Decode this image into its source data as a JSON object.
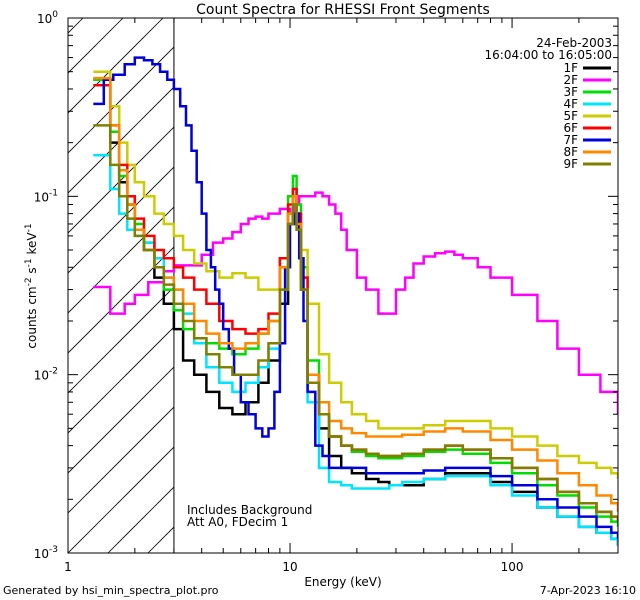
{
  "chart_data": {
    "type": "line",
    "title": "Count Spectra for RHESSI Front Segments",
    "xlabel": "Energy (keV)",
    "ylabel_parts": [
      "counts cm",
      "-2",
      " s",
      "-1",
      " keV",
      "-1"
    ],
    "xscale": "log",
    "yscale": "log",
    "xlim": [
      1,
      300
    ],
    "ylim": [
      0.001,
      1
    ],
    "x_ticks": [
      {
        "value": 1,
        "label": "1"
      },
      {
        "value": 10,
        "label": "10"
      },
      {
        "value": 100,
        "label": "100"
      }
    ],
    "y_ticks": [
      {
        "value": 0.001,
        "base": "10",
        "exp": "-3"
      },
      {
        "value": 0.01,
        "base": "10",
        "exp": "-2"
      },
      {
        "value": 0.1,
        "base": "10",
        "exp": "-1"
      },
      {
        "value": 1,
        "base": "10",
        "exp": "0"
      }
    ],
    "date": "24-Feb-2003",
    "time_range": "16:04:00 to 16:05:00",
    "annotation_lines": [
      "Includes Background",
      "Att A0, FDecim 1"
    ],
    "attenuator_cutoff_kev": 3,
    "legend_position": "top-right",
    "series": [
      {
        "name": "1F",
        "color": "#000000",
        "x": [
          1.3,
          1.55,
          1.7,
          1.85,
          2.0,
          2.2,
          2.45,
          2.7,
          3.0,
          3.3,
          3.7,
          4.2,
          4.8,
          5.5,
          6.3,
          7.2,
          8.0,
          9.0,
          9.8,
          10.3,
          10.7,
          11.2,
          12.0,
          13.5,
          15,
          17,
          19,
          22,
          25,
          28,
          32,
          40,
          50,
          60,
          80,
          100,
          130,
          160,
          200,
          240,
          280,
          300
        ],
        "y": [
          0.45,
          0.2,
          0.12,
          0.09,
          0.065,
          0.05,
          0.035,
          0.025,
          0.018,
          0.012,
          0.01,
          0.008,
          0.0065,
          0.006,
          0.007,
          0.009,
          0.012,
          0.025,
          0.07,
          0.1,
          0.07,
          0.03,
          0.009,
          0.005,
          0.0035,
          0.003,
          0.0028,
          0.0026,
          0.0025,
          0.0024,
          0.0024,
          0.0026,
          0.0028,
          0.0028,
          0.0025,
          0.0022,
          0.0018,
          0.0016,
          0.0014,
          0.0013,
          0.0012,
          0.0011
        ]
      },
      {
        "name": "2F",
        "color": "#ff00ff",
        "x": [
          1.3,
          1.55,
          1.8,
          2.0,
          2.3,
          2.7,
          3.0,
          3.5,
          4.0,
          4.5,
          5.0,
          5.5,
          6.0,
          6.5,
          7.0,
          7.5,
          8.0,
          9.0,
          10.0,
          10.5,
          11.0,
          12.0,
          13.0,
          14.0,
          15.0,
          16.0,
          17.0,
          18.0,
          20.0,
          22.0,
          25.0,
          28.0,
          30.0,
          33.0,
          36.0,
          40.0,
          45.0,
          50.0,
          55.0,
          60.0,
          70.0,
          80.0,
          100.0,
          130.0,
          160.0,
          200.0,
          250.0,
          300.0
        ],
        "y": [
          0.031,
          0.022,
          0.025,
          0.028,
          0.033,
          0.038,
          0.041,
          0.041,
          0.047,
          0.055,
          0.058,
          0.063,
          0.07,
          0.075,
          0.077,
          0.075,
          0.08,
          0.085,
          0.08,
          0.09,
          0.1,
          0.1,
          0.105,
          0.1,
          0.09,
          0.08,
          0.065,
          0.05,
          0.035,
          0.03,
          0.022,
          0.022,
          0.03,
          0.035,
          0.042,
          0.046,
          0.048,
          0.049,
          0.047,
          0.045,
          0.04,
          0.035,
          0.028,
          0.02,
          0.014,
          0.01,
          0.008,
          0.006
        ]
      },
      {
        "name": "3F",
        "color": "#00dd00",
        "x": [
          1.3,
          1.55,
          1.7,
          1.85,
          2.0,
          2.2,
          2.45,
          2.7,
          3.0,
          3.3,
          3.7,
          4.2,
          4.8,
          5.5,
          6.3,
          7.2,
          8.0,
          9.0,
          9.8,
          10.3,
          10.7,
          11.2,
          12.0,
          13.5,
          15,
          17,
          19,
          22,
          25,
          28,
          32,
          40,
          50,
          60,
          80,
          100,
          130,
          160,
          200,
          240,
          280,
          300
        ],
        "y": [
          0.45,
          0.23,
          0.13,
          0.1,
          0.07,
          0.055,
          0.04,
          0.03,
          0.023,
          0.018,
          0.016,
          0.015,
          0.014,
          0.013,
          0.014,
          0.017,
          0.02,
          0.04,
          0.1,
          0.13,
          0.09,
          0.04,
          0.012,
          0.006,
          0.0045,
          0.004,
          0.0037,
          0.0035,
          0.0034,
          0.0034,
          0.0035,
          0.0037,
          0.0038,
          0.0036,
          0.0032,
          0.0028,
          0.0024,
          0.0021,
          0.0018,
          0.0016,
          0.0015,
          0.0014
        ]
      },
      {
        "name": "4F",
        "color": "#00e5ff",
        "x": [
          1.3,
          1.55,
          1.7,
          1.85,
          2.0,
          2.2,
          2.45,
          2.7,
          3.0,
          3.3,
          3.7,
          4.2,
          4.8,
          5.5,
          6.3,
          7.2,
          8.0,
          9.0,
          9.8,
          10.3,
          10.7,
          11.2,
          12.0,
          13.5,
          15,
          17,
          19,
          22,
          25,
          28,
          32,
          40,
          50,
          60,
          80,
          100,
          130,
          160,
          200,
          240,
          280,
          300
        ],
        "y": [
          0.17,
          0.11,
          0.08,
          0.065,
          0.06,
          0.055,
          0.045,
          0.035,
          0.03,
          0.022,
          0.015,
          0.011,
          0.009,
          0.008,
          0.009,
          0.011,
          0.014,
          0.03,
          0.08,
          0.11,
          0.075,
          0.03,
          0.007,
          0.003,
          0.0025,
          0.0024,
          0.0023,
          0.0023,
          0.0023,
          0.0024,
          0.0025,
          0.0026,
          0.0027,
          0.0027,
          0.0024,
          0.0021,
          0.0018,
          0.0016,
          0.0014,
          0.0013,
          0.0012,
          0.0011
        ]
      },
      {
        "name": "5F",
        "color": "#cccc00",
        "x": [
          1.3,
          1.55,
          1.7,
          1.85,
          2.0,
          2.2,
          2.45,
          2.7,
          3.0,
          3.3,
          3.7,
          4.2,
          4.8,
          5.5,
          6.3,
          7.2,
          8.0,
          9.0,
          9.8,
          10.3,
          10.7,
          11.2,
          12.0,
          13.5,
          15,
          17,
          19,
          22,
          25,
          28,
          32,
          40,
          50,
          60,
          80,
          100,
          130,
          160,
          200,
          240,
          280,
          300
        ],
        "y": [
          0.5,
          0.32,
          0.2,
          0.15,
          0.12,
          0.1,
          0.08,
          0.07,
          0.06,
          0.05,
          0.042,
          0.038,
          0.035,
          0.037,
          0.035,
          0.03,
          0.03,
          0.045,
          0.08,
          0.09,
          0.08,
          0.05,
          0.025,
          0.013,
          0.009,
          0.007,
          0.006,
          0.0055,
          0.005,
          0.005,
          0.005,
          0.0052,
          0.0055,
          0.0055,
          0.005,
          0.0045,
          0.004,
          0.0035,
          0.0032,
          0.003,
          0.0028,
          0.0026
        ]
      },
      {
        "name": "6F",
        "color": "#ff0000",
        "x": [
          1.3,
          1.55,
          1.7,
          1.85,
          2.0,
          2.2,
          2.45,
          2.7,
          3.0,
          3.3,
          3.7,
          4.2,
          4.8,
          5.5,
          6.3,
          7.2,
          8.0,
          9.0,
          9.8,
          10.3,
          10.7,
          11.2,
          12.0,
          13.5,
          15,
          17,
          19,
          22,
          25,
          28,
          32,
          40,
          50,
          60,
          80,
          100,
          130,
          160,
          200,
          240,
          280,
          300
        ],
        "y": [
          0.42,
          0.25,
          0.15,
          0.1,
          0.075,
          0.06,
          0.05,
          0.045,
          0.04,
          0.035,
          0.03,
          0.025,
          0.02,
          0.018,
          0.017,
          0.018,
          0.022,
          0.045,
          0.09,
          0.11,
          0.08,
          0.035,
          0.01,
          0.006,
          0.0045,
          0.004,
          0.0038,
          0.0036,
          0.0035,
          0.0035,
          0.0036,
          0.0038,
          0.004,
          0.0038,
          0.0034,
          0.003,
          0.0026,
          0.0022,
          0.0019,
          0.0017,
          0.0016,
          0.0015
        ]
      },
      {
        "name": "7F",
        "color": "#0000dd",
        "x": [
          1.3,
          1.45,
          1.6,
          1.8,
          2.0,
          2.2,
          2.4,
          2.6,
          2.8,
          3.0,
          3.2,
          3.4,
          3.6,
          3.8,
          4.0,
          4.2,
          4.4,
          4.6,
          4.8,
          5.0,
          5.3,
          5.6,
          6.0,
          6.5,
          7.0,
          7.5,
          8.0,
          8.5,
          9.0,
          9.5,
          10.0,
          10.5,
          11.0,
          11.5,
          12.0,
          13.0,
          14.0,
          15.0,
          16.0,
          18.0,
          20.0,
          22.0,
          25.0,
          28.0,
          32.0,
          40.0,
          50.0,
          60.0,
          80.0,
          100.0,
          130.0,
          160.0,
          200.0,
          240.0,
          280.0,
          300.0
        ],
        "y": [
          0.33,
          0.45,
          0.48,
          0.55,
          0.6,
          0.58,
          0.55,
          0.5,
          0.45,
          0.4,
          0.32,
          0.25,
          0.18,
          0.12,
          0.08,
          0.05,
          0.04,
          0.03,
          0.025,
          0.018,
          0.014,
          0.01,
          0.007,
          0.006,
          0.005,
          0.0045,
          0.005,
          0.008,
          0.015,
          0.04,
          0.07,
          0.08,
          0.045,
          0.02,
          0.008,
          0.004,
          0.0035,
          0.003,
          0.003,
          0.003,
          0.003,
          0.0028,
          0.0028,
          0.0028,
          0.0028,
          0.0029,
          0.003,
          0.003,
          0.0027,
          0.0024,
          0.002,
          0.0018,
          0.0016,
          0.0014,
          0.0013,
          0.0012
        ]
      },
      {
        "name": "8F",
        "color": "#ff8800",
        "x": [
          1.3,
          1.55,
          1.7,
          1.85,
          2.0,
          2.2,
          2.45,
          2.7,
          3.0,
          3.3,
          3.7,
          4.2,
          4.8,
          5.5,
          6.3,
          7.2,
          8.0,
          9.0,
          9.8,
          10.3,
          10.7,
          11.2,
          12.0,
          13.5,
          15,
          17,
          19,
          22,
          25,
          28,
          32,
          40,
          50,
          60,
          80,
          100,
          130,
          160,
          200,
          240,
          280,
          300
        ],
        "y": [
          0.46,
          0.25,
          0.14,
          0.09,
          0.065,
          0.05,
          0.04,
          0.035,
          0.03,
          0.025,
          0.02,
          0.017,
          0.015,
          0.014,
          0.015,
          0.017,
          0.02,
          0.04,
          0.08,
          0.1,
          0.07,
          0.03,
          0.01,
          0.007,
          0.0055,
          0.005,
          0.0047,
          0.0045,
          0.0045,
          0.0045,
          0.0046,
          0.0048,
          0.005,
          0.0048,
          0.0043,
          0.0038,
          0.0033,
          0.0028,
          0.0024,
          0.0021,
          0.0019,
          0.0017
        ]
      },
      {
        "name": "9F",
        "color": "#808000",
        "x": [
          1.3,
          1.55,
          1.7,
          1.85,
          2.0,
          2.2,
          2.45,
          2.7,
          3.0,
          3.3,
          3.7,
          4.2,
          4.8,
          5.5,
          6.3,
          7.2,
          8.0,
          9.0,
          9.8,
          10.3,
          10.7,
          11.2,
          12.0,
          13.5,
          15,
          17,
          19,
          22,
          25,
          28,
          32,
          40,
          50,
          60,
          80,
          100,
          130,
          160,
          200,
          240,
          280,
          300
        ],
        "y": [
          0.25,
          0.15,
          0.1,
          0.075,
          0.06,
          0.05,
          0.04,
          0.032,
          0.025,
          0.02,
          0.016,
          0.013,
          0.011,
          0.01,
          0.01,
          0.012,
          0.015,
          0.03,
          0.07,
          0.09,
          0.065,
          0.03,
          0.009,
          0.006,
          0.0045,
          0.004,
          0.0038,
          0.0036,
          0.0035,
          0.0035,
          0.0036,
          0.0038,
          0.004,
          0.0038,
          0.0034,
          0.003,
          0.0026,
          0.0022,
          0.0019,
          0.0017,
          0.0016,
          0.0015
        ]
      }
    ]
  },
  "footer": {
    "generated_by": "Generated by hsi_min_spectra_plot.pro",
    "timestamp": "7-Apr-2023 16:10"
  }
}
